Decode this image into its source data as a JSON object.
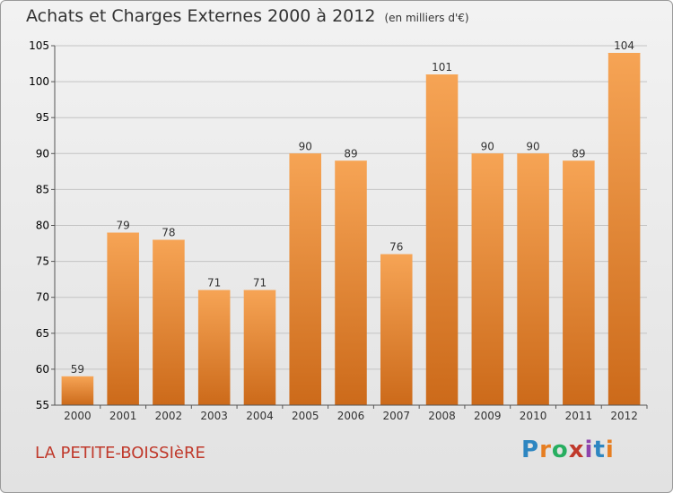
{
  "header": {
    "title": "Achats et Charges Externes 2000 à 2012",
    "subtitle": "(en milliers d'€)"
  },
  "footer": {
    "commune": "LA PETITE-BOISSIèRE",
    "brand": "Proxiti",
    "brand_letters": [
      "P",
      "r",
      "o",
      "x",
      "i",
      "t",
      "i"
    ],
    "brand_colors": [
      "#2e86c1",
      "#e67e22",
      "#27ae60",
      "#c0392b",
      "#8e44ad",
      "#2e86c1",
      "#e67e22"
    ]
  },
  "colors": {
    "bar_top": "#f6a455",
    "bar_bottom": "#cc6a1a",
    "grid": "#c4c4c4",
    "axis": "#555555"
  },
  "chart_data": {
    "type": "bar",
    "title": "Achats et Charges Externes 2000 à 2012",
    "subtitle": "(en milliers d'€)",
    "categories": [
      "2000",
      "2001",
      "2002",
      "2003",
      "2004",
      "2005",
      "2006",
      "2007",
      "2008",
      "2009",
      "2010",
      "2011",
      "2012"
    ],
    "values": [
      59,
      79,
      78,
      71,
      71,
      90,
      89,
      76,
      101,
      90,
      90,
      89,
      104
    ],
    "ylim": [
      55,
      105
    ],
    "yticks": [
      55,
      60,
      65,
      70,
      75,
      80,
      85,
      90,
      95,
      100,
      105
    ],
    "grid": "horizontal"
  }
}
